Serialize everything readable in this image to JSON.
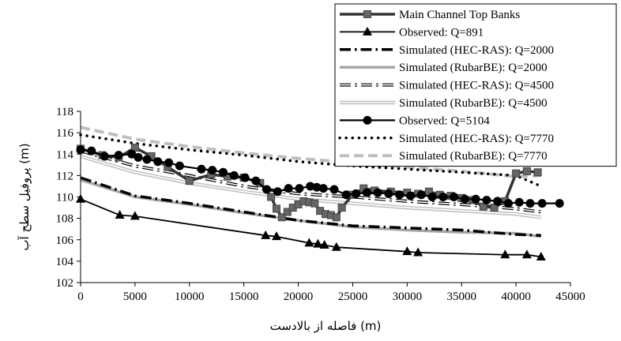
{
  "chart_data": {
    "type": "line",
    "xlabel": "فاصله از بالادست (m)",
    "ylabel": "پروفیل سطح آب (m)",
    "xlim": [
      0,
      45000
    ],
    "ylim": [
      102,
      118
    ],
    "xticks": [
      "0",
      "5000",
      "10000",
      "15000",
      "20000",
      "25000",
      "30000",
      "35000",
      "40000",
      "45000"
    ],
    "yticks": [
      "102",
      "104",
      "106",
      "108",
      "110",
      "112",
      "114",
      "116",
      "118"
    ],
    "grid": false,
    "legend_position": "top-right",
    "series": [
      {
        "name": "Main Channel Top Banks",
        "style": "black-thick-square",
        "x": [
          0,
          2000,
          3500,
          5000,
          6500,
          8000,
          10000,
          12000,
          13500,
          15000,
          16500,
          17500,
          18000,
          18500,
          19000,
          19500,
          20000,
          20500,
          21000,
          21500,
          22000,
          22500,
          23000,
          23500,
          24000,
          25000,
          26000,
          27000,
          28500,
          30000,
          31000,
          32000,
          33000,
          34000,
          35000,
          36000,
          37000,
          38000,
          39000,
          40000,
          41000,
          42000
        ],
        "y": [
          114.5,
          113.9,
          113.7,
          114.6,
          113.8,
          112.8,
          111.5,
          112.1,
          111.9,
          111.8,
          111.3,
          110.0,
          108.9,
          108.1,
          108.6,
          109.0,
          109.3,
          109.6,
          109.5,
          109.4,
          108.7,
          108.4,
          108.3,
          108.1,
          109.0,
          110.2,
          110.8,
          110.6,
          110.5,
          110.4,
          110.3,
          110.5,
          110.2,
          110.1,
          109.9,
          109.7,
          109.1,
          109.0,
          109.6,
          112.2,
          112.4,
          112.3
        ]
      },
      {
        "name": "Observed: Q=891",
        "style": "black-thin-triangle",
        "x": [
          0,
          3600,
          5000,
          17000,
          18000,
          21000,
          21800,
          22400,
          23500,
          30000,
          31000,
          39000,
          41000,
          42300
        ],
        "y": [
          109.8,
          108.3,
          108.2,
          106.4,
          106.3,
          105.7,
          105.6,
          105.5,
          105.3,
          104.9,
          104.8,
          104.6,
          104.6,
          104.4
        ]
      },
      {
        "name": "Simulated (HEC-RAS): Q=2000",
        "style": "black-thick-dotdash",
        "x": [
          0,
          5000,
          10000,
          15000,
          20000,
          25000,
          30000,
          35000,
          40000,
          42300
        ],
        "y": [
          111.8,
          110.1,
          109.4,
          108.6,
          107.8,
          107.3,
          107.1,
          106.9,
          106.5,
          106.4
        ]
      },
      {
        "name": "Simulated (RubarBE): Q=2000",
        "style": "gray-thick",
        "x": [
          0,
          5000,
          10000,
          15000,
          20000,
          25000,
          30000,
          35000,
          40000,
          42300
        ],
        "y": [
          111.6,
          110.0,
          109.3,
          108.5,
          107.8,
          107.2,
          106.9,
          106.7,
          106.6,
          106.3
        ]
      },
      {
        "name": "Simulated (HEC-RAS): Q=4500",
        "style": "black-hollow-dotdash",
        "x": [
          0,
          5000,
          10000,
          15000,
          20000,
          25000,
          30000,
          35000,
          40000,
          42300
        ],
        "y": [
          114.3,
          112.9,
          112.0,
          111.0,
          110.3,
          110.0,
          109.6,
          109.3,
          108.9,
          108.6
        ]
      },
      {
        "name": "Simulated (RubarBE): Q=4500",
        "style": "gray-double",
        "x": [
          0,
          5000,
          10000,
          15000,
          20000,
          25000,
          30000,
          35000,
          40000,
          42300
        ],
        "y": [
          113.8,
          112.3,
          111.3,
          110.5,
          109.8,
          109.4,
          109.0,
          108.7,
          108.4,
          108.1
        ]
      },
      {
        "name": "Observed: Q=5104",
        "style": "black-circle",
        "x": [
          0,
          1000,
          2200,
          3500,
          4700,
          5300,
          6100,
          7100,
          8100,
          9100,
          11100,
          12100,
          13100,
          14100,
          15100,
          16100,
          17100,
          18100,
          19100,
          20100,
          21100,
          21700,
          22300,
          23300,
          24400,
          25300,
          26300,
          27300,
          28300,
          29300,
          30300,
          31300,
          32300,
          33300,
          34300,
          35300,
          36300,
          37300,
          38300,
          39300,
          40300,
          41300,
          42400,
          44000
        ],
        "y": [
          114.4,
          114.3,
          113.8,
          113.9,
          114.0,
          113.7,
          113.5,
          113.3,
          113.2,
          112.9,
          112.6,
          112.5,
          112.3,
          112.0,
          111.8,
          111.5,
          110.7,
          110.5,
          110.8,
          110.8,
          111.0,
          110.9,
          110.8,
          110.7,
          110.2,
          110.3,
          110.4,
          110.4,
          110.3,
          110.2,
          110.1,
          110.2,
          110.0,
          110.0,
          110.0,
          109.8,
          109.8,
          109.7,
          109.6,
          109.4,
          109.5,
          109.4,
          109.4,
          109.4
        ]
      },
      {
        "name": "Simulated (HEC-RAS): Q=7770",
        "style": "black-dotted",
        "x": [
          0,
          5000,
          10000,
          15000,
          20000,
          25000,
          30000,
          35000,
          40000,
          42300
        ],
        "y": [
          115.8,
          115.0,
          114.4,
          113.9,
          113.3,
          112.9,
          112.6,
          112.3,
          112.0,
          111.0
        ]
      },
      {
        "name": "Simulated (RubarBE): Q=7770",
        "style": "gray-dashed",
        "x": [
          0,
          5000,
          10000,
          15000,
          20000,
          25000,
          30000,
          35000,
          40000,
          42300
        ],
        "y": [
          116.5,
          115.4,
          114.7,
          114.1,
          113.6,
          113.2,
          112.8,
          112.4,
          111.9,
          112.0
        ]
      }
    ]
  }
}
